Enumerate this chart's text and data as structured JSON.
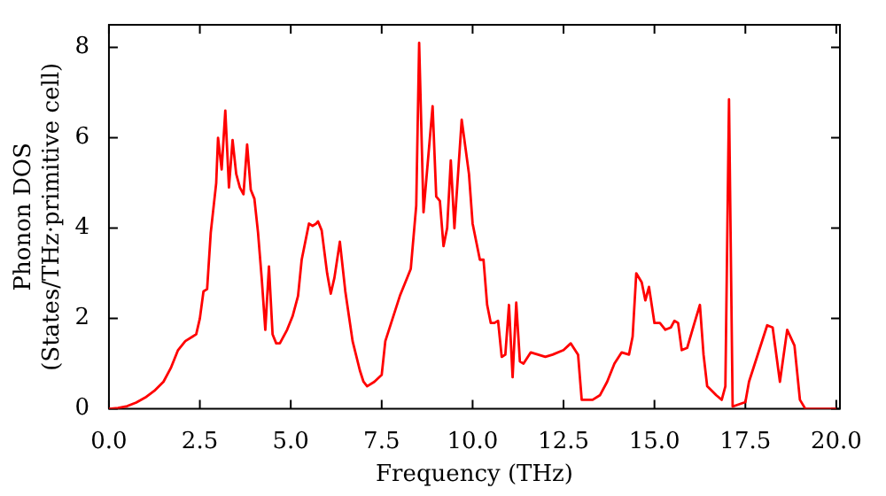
{
  "chart_data": {
    "type": "line",
    "xlabel": "Frequency (THz)",
    "ylabel": "Phonon DOS\n(States/THz·primitive cell)",
    "xlim": [
      0,
      20.1
    ],
    "ylim": [
      0,
      8.5
    ],
    "xticks": [
      {
        "value": 0,
        "label": "0.0"
      },
      {
        "value": 2.5,
        "label": "2.5"
      },
      {
        "value": 5,
        "label": "5.0"
      },
      {
        "value": 7.5,
        "label": "7.5"
      },
      {
        "value": 10,
        "label": "10.0"
      },
      {
        "value": 12.5,
        "label": "12.5"
      },
      {
        "value": 15,
        "label": "15.0"
      },
      {
        "value": 17.5,
        "label": "17.5"
      },
      {
        "value": 20,
        "label": "20.0"
      }
    ],
    "yticks": [
      0,
      2,
      4,
      6,
      8
    ],
    "grid": false,
    "legend": false,
    "marker": "none",
    "line_style": "solid",
    "series": [
      {
        "color": "#ff0000",
        "x": [
          0,
          0.25,
          0.5,
          0.75,
          1.0,
          1.25,
          1.5,
          1.7,
          1.9,
          2.1,
          2.3,
          2.4,
          2.5,
          2.6,
          2.7,
          2.8,
          2.95,
          3.0,
          3.1,
          3.2,
          3.3,
          3.4,
          3.5,
          3.6,
          3.7,
          3.8,
          3.9,
          4.0,
          4.1,
          4.2,
          4.3,
          4.4,
          4.5,
          4.6,
          4.7,
          4.9,
          5.05,
          5.2,
          5.3,
          5.5,
          5.6,
          5.7,
          5.75,
          5.85,
          6.0,
          6.1,
          6.2,
          6.35,
          6.5,
          6.7,
          6.9,
          7.0,
          7.1,
          7.3,
          7.5,
          7.6,
          7.8,
          8.0,
          8.2,
          8.3,
          8.45,
          8.53,
          8.65,
          8.9,
          9.0,
          9.1,
          9.2,
          9.3,
          9.4,
          9.5,
          9.7,
          9.8,
          9.9,
          10.0,
          10.2,
          10.3,
          10.4,
          10.5,
          10.6,
          10.7,
          10.8,
          10.9,
          11.0,
          11.1,
          11.2,
          11.3,
          11.4,
          11.6,
          12.0,
          12.2,
          12.5,
          12.7,
          12.9,
          13.0,
          13.3,
          13.5,
          13.7,
          13.9,
          14.1,
          14.3,
          14.4,
          14.5,
          14.65,
          14.75,
          14.85,
          15.0,
          15.15,
          15.3,
          15.45,
          15.55,
          15.65,
          15.75,
          15.9,
          16.1,
          16.25,
          16.35,
          16.45,
          16.7,
          16.85,
          16.95,
          17.05,
          17.15,
          17.5,
          17.6,
          17.8,
          18.1,
          18.25,
          18.45,
          18.65,
          18.85,
          19.0,
          19.15,
          20.0
        ],
        "values": [
          0,
          0.02,
          0.06,
          0.14,
          0.25,
          0.4,
          0.6,
          0.9,
          1.3,
          1.5,
          1.6,
          1.65,
          2.0,
          2.6,
          2.65,
          3.9,
          5.0,
          6.0,
          5.3,
          6.6,
          4.9,
          5.95,
          5.2,
          4.9,
          4.75,
          5.85,
          4.85,
          4.65,
          3.9,
          2.9,
          1.75,
          3.15,
          1.65,
          1.45,
          1.45,
          1.75,
          2.05,
          2.5,
          3.3,
          4.1,
          4.05,
          4.1,
          4.15,
          3.95,
          3.0,
          2.55,
          2.9,
          3.7,
          2.6,
          1.5,
          0.85,
          0.6,
          0.5,
          0.6,
          0.75,
          1.5,
          2.0,
          2.5,
          2.9,
          3.1,
          4.5,
          8.1,
          4.35,
          6.7,
          4.7,
          4.6,
          3.6,
          4.0,
          5.5,
          4.0,
          6.4,
          5.8,
          5.2,
          4.1,
          3.3,
          3.3,
          2.3,
          1.9,
          1.9,
          1.95,
          1.15,
          1.2,
          2.3,
          0.7,
          2.35,
          1.05,
          1.0,
          1.25,
          1.15,
          1.2,
          1.3,
          1.45,
          1.2,
          0.2,
          0.2,
          0.3,
          0.6,
          1.0,
          1.25,
          1.2,
          1.6,
          3.0,
          2.8,
          2.4,
          2.7,
          1.9,
          1.9,
          1.75,
          1.8,
          1.95,
          1.9,
          1.3,
          1.35,
          1.9,
          2.3,
          1.2,
          0.5,
          0.3,
          0.2,
          0.5,
          6.85,
          0.05,
          0.15,
          0.6,
          1.1,
          1.85,
          1.8,
          0.6,
          1.75,
          1.4,
          0.2,
          0,
          0
        ]
      }
    ]
  }
}
